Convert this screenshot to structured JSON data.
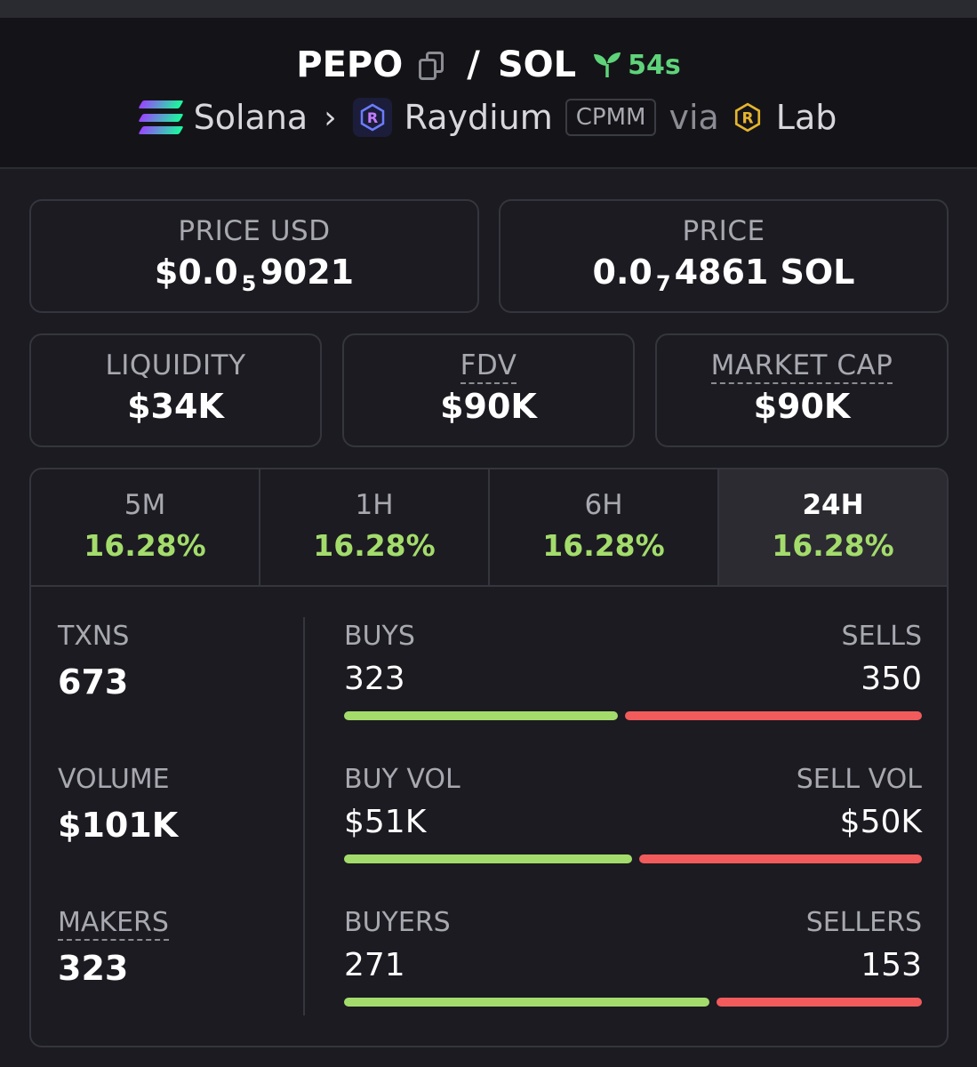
{
  "header": {
    "base": "PEPO",
    "separator": "/",
    "quote": "SOL",
    "age": "54s",
    "chain": "Solana",
    "dex": "Raydium",
    "pool_type": "CPMM",
    "via": "via",
    "launchpad": "Lab"
  },
  "price_cards": {
    "price_usd": {
      "label": "PRICE USD",
      "prefix": "$0.0",
      "sub": "5",
      "suffix": "9021"
    },
    "price_native": {
      "label": "PRICE",
      "prefix": "0.0",
      "sub": "7",
      "suffix": "4861 SOL"
    }
  },
  "metrics": {
    "liquidity": {
      "label": "LIQUIDITY",
      "value": "$34K"
    },
    "fdv": {
      "label": "FDV",
      "value": "$90K"
    },
    "market_cap": {
      "label": "MARKET CAP",
      "value": "$90K"
    }
  },
  "tabs": [
    {
      "label": "5M",
      "value": "16.28%"
    },
    {
      "label": "1H",
      "value": "16.28%"
    },
    {
      "label": "6H",
      "value": "16.28%"
    },
    {
      "label": "24H",
      "value": "16.28%"
    }
  ],
  "active_tab": "24H",
  "stats": {
    "txns": {
      "label": "TXNS",
      "value": "673"
    },
    "volume": {
      "label": "VOLUME",
      "value": "$101K"
    },
    "makers": {
      "label": "MAKERS",
      "value": "323"
    }
  },
  "split": {
    "buys": {
      "left_label": "BUYS",
      "left_value": "323",
      "right_label": "SELLS",
      "right_value": "350",
      "buy_fraction": 0.48
    },
    "volume": {
      "left_label": "BUY VOL",
      "left_value": "$51K",
      "right_label": "SELL VOL",
      "right_value": "$50K",
      "buy_fraction": 0.505
    },
    "traders": {
      "left_label": "BUYERS",
      "left_value": "271",
      "right_label": "SELLERS",
      "right_value": "153",
      "buy_fraction": 0.64
    }
  },
  "colors": {
    "positive": "#a4dc6c",
    "negative": "#f15b5b",
    "age": "#5fd37a"
  },
  "icons": {
    "copy": "copy-icon",
    "age": "seedling-icon",
    "chain": "solana-logo-icon",
    "dex": "raydium-logo-icon",
    "launchpad": "raydium-lab-logo-icon",
    "chevron": "chevron-right-icon"
  }
}
